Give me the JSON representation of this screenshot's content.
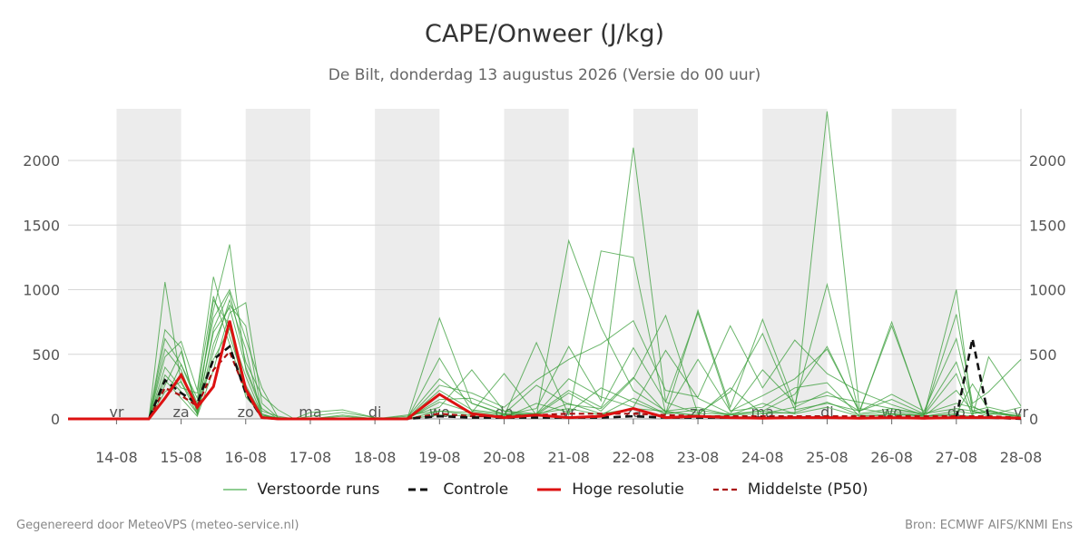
{
  "title": "CAPE/Onweer (J/kg)",
  "subtitle": "De Bilt, donderdag 13 augustus 2026 (Versie do 00 uur)",
  "footer": {
    "left": "Gegenereerd door MeteoVPS (meteo-service.nl)",
    "right": "Bron: ECMWF AIFS/KNMI Ens"
  },
  "legend": [
    {
      "label": "Verstoorde runs",
      "color": "#4caf50",
      "style": "thin-solid"
    },
    {
      "label": "Controle",
      "color": "#111111",
      "style": "dashed"
    },
    {
      "label": "Hoge resolutie",
      "color": "#dd1111",
      "style": "solid"
    },
    {
      "label": "Middelste (P50)",
      "color": "#aa1111",
      "style": "dashed"
    }
  ],
  "chart_data": {
    "type": "line",
    "title": "CAPE/Onweer (J/kg)",
    "x_unit": "days since 13-08 00 uur",
    "xlim": [
      -0.75,
      14.0
    ],
    "ylim": [
      0,
      2400
    ],
    "yticks": [
      0,
      500,
      1000,
      1500,
      2000
    ],
    "grid": true,
    "legend_position": "bottom",
    "x_ticks": [
      {
        "x": 0,
        "day": "vr",
        "date": "14-08"
      },
      {
        "x": 1,
        "day": "za",
        "date": "15-08"
      },
      {
        "x": 2,
        "day": "zo",
        "date": "16-08"
      },
      {
        "x": 3,
        "day": "ma",
        "date": "17-08"
      },
      {
        "x": 4,
        "day": "di",
        "date": "18-08"
      },
      {
        "x": 5,
        "day": "wo",
        "date": "19-08"
      },
      {
        "x": 6,
        "day": "do",
        "date": "20-08"
      },
      {
        "x": 7,
        "day": "vr",
        "date": "21-08"
      },
      {
        "x": 8,
        "day": "za",
        "date": "22-08"
      },
      {
        "x": 9,
        "day": "zo",
        "date": "23-08"
      },
      {
        "x": 10,
        "day": "ma",
        "date": "24-08"
      },
      {
        "x": 11,
        "day": "di",
        "date": "25-08"
      },
      {
        "x": 12,
        "day": "wo",
        "date": "26-08"
      },
      {
        "x": 13,
        "day": "do",
        "date": "27-08"
      },
      {
        "x": 14,
        "day": "vr",
        "date": "28-08"
      }
    ],
    "shaded_days": [
      [
        0,
        1
      ],
      [
        2,
        3
      ],
      [
        4,
        5
      ],
      [
        6,
        7
      ],
      [
        8,
        9
      ],
      [
        10,
        11
      ],
      [
        12,
        13
      ]
    ],
    "x": [
      -0.75,
      -0.5,
      -0.25,
      0,
      0.25,
      0.5,
      0.75,
      1,
      1.25,
      1.5,
      1.75,
      2,
      2.25,
      2.5,
      2.75,
      3,
      3.5,
      4,
      4.5,
      5,
      5.5,
      6,
      6.5,
      7,
      7.5,
      8,
      8.5,
      9,
      9.5,
      10,
      10.5,
      11,
      11.5,
      12,
      12.5,
      13,
      13.25,
      13.5,
      14
    ],
    "series": [
      {
        "name": "Hoge resolutie",
        "role": "hres",
        "color": "#dd1111",
        "values": [
          0,
          0,
          0,
          0,
          0,
          0,
          160,
          340,
          90,
          250,
          760,
          230,
          10,
          0,
          0,
          0,
          0,
          0,
          0,
          190,
          40,
          10,
          30,
          10,
          20,
          80,
          10,
          20,
          10,
          5,
          10,
          10,
          5,
          10,
          5,
          10,
          10,
          10,
          5
        ]
      },
      {
        "name": "Controle",
        "role": "control",
        "color": "#111111",
        "values": [
          0,
          0,
          0,
          0,
          0,
          0,
          300,
          200,
          120,
          460,
          560,
          200,
          10,
          0,
          0,
          0,
          0,
          0,
          0,
          20,
          10,
          10,
          10,
          10,
          10,
          20,
          10,
          10,
          10,
          10,
          10,
          10,
          5,
          10,
          5,
          10,
          620,
          10,
          0
        ]
      },
      {
        "name": "Middelste (P50)",
        "role": "median",
        "color": "#aa1111",
        "values": [
          0,
          0,
          0,
          0,
          0,
          0,
          240,
          180,
          100,
          380,
          520,
          210,
          10,
          0,
          0,
          0,
          0,
          0,
          0,
          40,
          20,
          20,
          30,
          40,
          40,
          40,
          30,
          20,
          20,
          20,
          20,
          20,
          20,
          20,
          20,
          20,
          20,
          20,
          10
        ]
      },
      {
        "role": "member",
        "values": [
          0,
          0,
          0,
          0,
          0,
          0,
          620,
          420,
          120,
          840,
          1350,
          380,
          60,
          20,
          0,
          0,
          0,
          0,
          10,
          310,
          120,
          40,
          260,
          110,
          80,
          320,
          50,
          30,
          240,
          40,
          90,
          210,
          60,
          150,
          40,
          120,
          90,
          50,
          20
        ]
      },
      {
        "role": "member",
        "values": [
          0,
          0,
          0,
          0,
          0,
          0,
          1060,
          280,
          40,
          580,
          880,
          720,
          40,
          0,
          0,
          0,
          30,
          0,
          20,
          90,
          380,
          60,
          20,
          1380,
          710,
          220,
          60,
          20,
          30,
          120,
          40,
          2380,
          80,
          40,
          20,
          30,
          20,
          10,
          0
        ]
      },
      {
        "role": "member",
        "values": [
          0,
          0,
          0,
          0,
          0,
          0,
          480,
          600,
          220,
          1100,
          640,
          260,
          30,
          10,
          0,
          20,
          50,
          10,
          0,
          780,
          120,
          30,
          80,
          560,
          140,
          2100,
          130,
          820,
          60,
          180,
          310,
          540,
          60,
          720,
          40,
          80,
          60,
          20,
          10
        ]
      },
      {
        "role": "member",
        "values": [
          0,
          0,
          0,
          0,
          0,
          0,
          300,
          160,
          20,
          380,
          820,
          900,
          120,
          10,
          0,
          0,
          0,
          0,
          0,
          130,
          50,
          20,
          590,
          30,
          1300,
          1250,
          40,
          840,
          90,
          770,
          110,
          1040,
          40,
          80,
          30,
          1000,
          40,
          60,
          20
        ]
      },
      {
        "role": "member",
        "values": [
          0,
          0,
          0,
          0,
          0,
          0,
          540,
          380,
          60,
          700,
          980,
          440,
          180,
          70,
          0,
          50,
          70,
          10,
          0,
          260,
          200,
          90,
          300,
          460,
          580,
          760,
          220,
          170,
          720,
          240,
          610,
          350,
          210,
          110,
          30,
          810,
          120,
          210,
          460
        ]
      },
      {
        "role": "member",
        "values": [
          0,
          0,
          0,
          0,
          0,
          0,
          260,
          520,
          80,
          460,
          700,
          330,
          30,
          0,
          0,
          0,
          20,
          0,
          30,
          60,
          50,
          350,
          30,
          200,
          60,
          310,
          800,
          40,
          40,
          60,
          190,
          560,
          50,
          750,
          20,
          40,
          270,
          70,
          0
        ]
      },
      {
        "role": "member",
        "values": [
          0,
          0,
          0,
          0,
          0,
          0,
          400,
          240,
          200,
          950,
          580,
          200,
          20,
          0,
          0,
          0,
          0,
          0,
          0,
          30,
          20,
          10,
          120,
          50,
          240,
          130,
          40,
          460,
          60,
          90,
          240,
          280,
          20,
          30,
          30,
          350,
          20,
          480,
          100
        ]
      },
      {
        "role": "member",
        "values": [
          0,
          0,
          0,
          0,
          0,
          0,
          150,
          420,
          160,
          780,
          1000,
          620,
          240,
          10,
          0,
          0,
          0,
          0,
          0,
          150,
          160,
          60,
          40,
          220,
          90,
          550,
          130,
          40,
          210,
          660,
          70,
          120,
          60,
          190,
          60,
          620,
          100,
          30,
          90
        ]
      },
      {
        "role": "member",
        "values": [
          0,
          0,
          0,
          0,
          0,
          0,
          690,
          550,
          30,
          520,
          920,
          540,
          10,
          0,
          0,
          0,
          0,
          0,
          0,
          470,
          60,
          30,
          40,
          310,
          170,
          90,
          530,
          160,
          40,
          380,
          120,
          180,
          130,
          80,
          40,
          440,
          60,
          90,
          30
        ]
      },
      {
        "role": "member",
        "values": [
          0,
          0,
          0,
          0,
          0,
          0,
          210,
          290,
          70,
          670,
          860,
          400,
          80,
          0,
          0,
          0,
          0,
          0,
          0,
          220,
          70,
          40,
          30,
          120,
          40,
          80,
          60,
          90,
          30,
          40,
          50,
          130,
          30,
          60,
          20,
          220,
          60,
          40,
          20
        ]
      },
      {
        "role": "member",
        "values": [
          0,
          0,
          0,
          0,
          0,
          0,
          340,
          210,
          40,
          920,
          720,
          170,
          30,
          0,
          0,
          0,
          0,
          0,
          0,
          60,
          30,
          20,
          40,
          80,
          30,
          160,
          40,
          70,
          30,
          60,
          40,
          90,
          20,
          40,
          20,
          60,
          40,
          60,
          20
        ]
      }
    ]
  }
}
